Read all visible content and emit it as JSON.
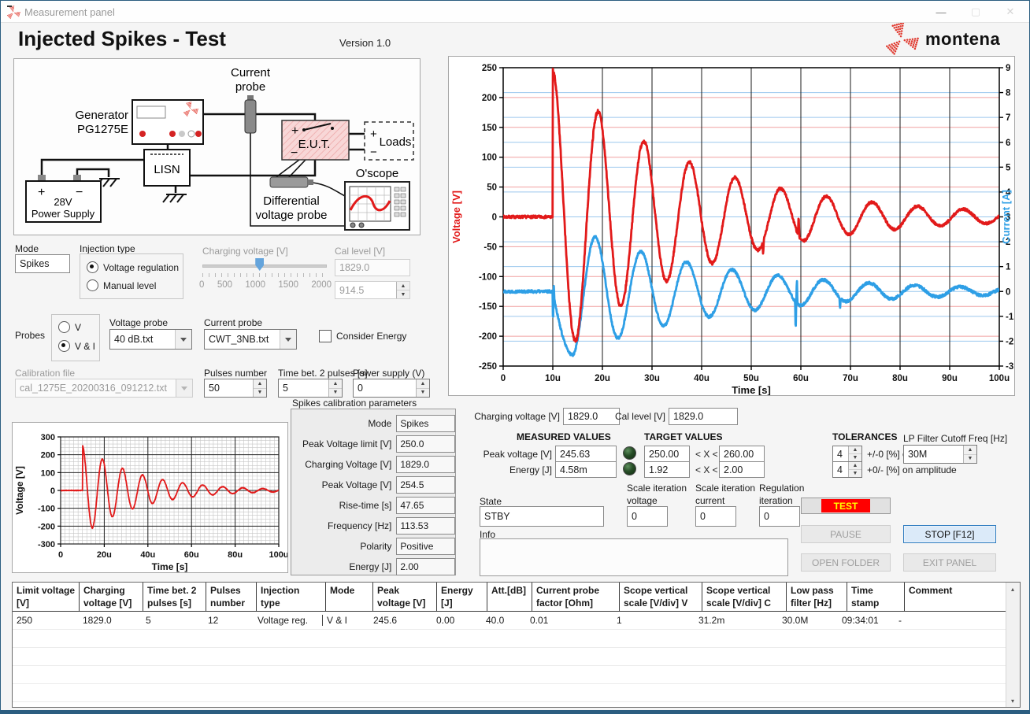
{
  "window": {
    "title": "Measurement panel",
    "minimize_glyph": "—",
    "maximize_glyph": "▢",
    "close_glyph": "✕"
  },
  "header": {
    "title": "Injected Spikes - Test",
    "version": "Version 1.0",
    "brand": "montena"
  },
  "diagram": {
    "generator_line1": "Generator",
    "generator_line2": "PG1275E",
    "current_probe_line1": "Current",
    "current_probe_line2": "probe",
    "eut": "E.U.T.",
    "loads": "Loads",
    "lisn": "LISN",
    "psu_line1": "28V",
    "psu_line2": "Power Supply",
    "diff_probe_line1": "Differential",
    "diff_probe_line2": "voltage probe",
    "oscope": "O'scope",
    "plus": "+",
    "minus": "−"
  },
  "controls": {
    "mode": {
      "label": "Mode",
      "value": "Spikes"
    },
    "injection": {
      "label": "Injection type",
      "options": [
        "Voltage regulation",
        "Manual level"
      ],
      "selected": 0
    },
    "charging_slider": {
      "label": "Charging voltage [V]",
      "min": 0,
      "max": 2000,
      "value": 914.5,
      "tick_labels": [
        "0",
        "500",
        "1000",
        "1500",
        "2000"
      ]
    },
    "cal_level": {
      "label": "Cal level [V]",
      "display": "1829.0",
      "spinner": "914.5"
    },
    "probes": {
      "label": "Probes",
      "options": [
        "V",
        "V & I"
      ],
      "selected": 1
    },
    "voltage_probe": {
      "label": "Voltage probe",
      "value": "40 dB.txt"
    },
    "current_probe": {
      "label": "Current probe",
      "value": "CWT_3NB.txt"
    },
    "consider_energy": {
      "label": "Consider Energy",
      "checked": false
    },
    "calibration_file": {
      "label": "Calibration file",
      "value": "cal_1275E_20200316_091212.txt"
    },
    "pulses_number": {
      "label": "Pulses number",
      "value": "50"
    },
    "time_bet_pulses": {
      "label": "Time bet. 2 pulses [s]",
      "value": "5"
    },
    "power_supply": {
      "label": "Power supply (V)",
      "value": "0"
    }
  },
  "calibration_params": {
    "title": "Spikes calibration parameters",
    "rows": [
      {
        "label": "Mode",
        "value": "Spikes"
      },
      {
        "label": "Peak Voltage limit [V]",
        "value": "250.0"
      },
      {
        "label": "Charging Voltage [V]",
        "value": "1829.0"
      },
      {
        "label": "Peak Voltage [V]",
        "value": "254.5"
      },
      {
        "label": "Rise-time [s]",
        "value": "47.65"
      },
      {
        "label": "Frequency [Hz]",
        "value": "113.53"
      },
      {
        "label": "Polarity",
        "value": "Positive"
      },
      {
        "label": "Energy [J]",
        "value": "2.00"
      }
    ]
  },
  "measurement": {
    "charging_voltage": {
      "label": "Charging voltage [V]",
      "value": "1829.0"
    },
    "cal_level": {
      "label": "Cal level [V]",
      "value": "1829.0"
    },
    "headers": {
      "measured": "MEASURED VALUES",
      "target": "TARGET VALUES",
      "tolerances": "TOLERANCES"
    },
    "rows": [
      {
        "label": "Peak voltage [V]",
        "measured": "245.63",
        "target_low": "250.00",
        "rel": "< X <",
        "target_high": "260.00",
        "tolerance": "4",
        "note": "+/-0 [%] on amplitude"
      },
      {
        "label": "Energy [J]",
        "measured": "4.58m",
        "target_low": "1.92",
        "rel": "< X <",
        "target_high": "2.00",
        "tolerance": "4",
        "note": "+0/- [%] on amplitude"
      }
    ],
    "lp_filter": {
      "label": "LP Filter Cutoff Freq [Hz]",
      "value": "30M"
    },
    "state": {
      "label": "State",
      "value": "STBY"
    },
    "scale_iter_voltage": {
      "label": "Scale iteration voltage",
      "value": "0"
    },
    "scale_iter_current": {
      "label": "Scale iteration current",
      "value": "0"
    },
    "regulation_iter": {
      "label": "Regulation iteration",
      "value": "0"
    },
    "info": {
      "label": "Info",
      "value": ""
    },
    "buttons": {
      "test": "TEST",
      "pause": "PAUSE",
      "stop": "STOP [F12]",
      "open_folder": "OPEN FOLDER",
      "exit": "EXIT PANEL"
    }
  },
  "table": {
    "columns": [
      "Limit voltage [V]",
      "Charging voltage [V]",
      "Time bet. 2 pulses [s]",
      "Pulses number",
      "Injection type",
      "Mode",
      "Peak voltage [V]",
      "Energy [J]",
      "Att.[dB]",
      "Current probe factor [Ohm]",
      "Scope vertical scale [V/div] V",
      "Scope vertical scale [V/div] C",
      "Low pass filter [Hz]",
      "Time stamp",
      "Comment"
    ],
    "rows": [
      [
        "250",
        "1829.0",
        "5",
        "12",
        "Voltage reg.",
        "V & I",
        "245.6",
        "0.00",
        "40.0",
        "0.01",
        "1",
        "31.2m",
        "30.0M",
        "09:34:01",
        "-"
      ]
    ]
  },
  "chart_data": [
    {
      "type": "line",
      "title": "",
      "xlabel": "Time [s]",
      "x_ticks": [
        "0",
        "10u",
        "20u",
        "30u",
        "40u",
        "50u",
        "60u",
        "70u",
        "80u",
        "90u",
        "100u"
      ],
      "x_range_us": [
        0,
        100
      ],
      "left_axis": {
        "label": "Voltage [V]",
        "color": "#e21a1a",
        "range": [
          -250,
          250
        ],
        "tick_step": 50,
        "gridline_color": "#f0a0a0"
      },
      "right_axis": {
        "label": "Current [A]",
        "color": "#2e9fe6",
        "range": [
          -3,
          9
        ],
        "tick_step": 1,
        "gridline_color": "#9cc8ee"
      },
      "series": [
        {
          "name": "voltage",
          "axis": "left",
          "color": "#e21a1a",
          "params": {
            "t0": 10,
            "amp": 245,
            "period": 9.2,
            "tau": 28,
            "floor": 4.5,
            "noise": 2.2,
            "glitches": [
              {
                "t": 59.55,
                "a": 28,
                "w": 0.1
              },
              {
                "t": 52.4,
                "a": -18,
                "w": 0.09
              }
            ]
          },
          "sampled_peaks_us_V": [
            [
              10,
              245
            ],
            [
              14.5,
              -225
            ],
            [
              19,
              199
            ],
            [
              23.5,
              -162
            ],
            [
              28,
              148
            ],
            [
              32,
              -128
            ],
            [
              36.5,
              108
            ],
            [
              40.5,
              -88
            ],
            [
              45,
              73
            ],
            [
              49.5,
              -60
            ],
            [
              54,
              50
            ],
            [
              58,
              -40
            ],
            [
              62,
              33
            ],
            [
              71,
              17
            ],
            [
              80,
              8
            ]
          ]
        },
        {
          "name": "current",
          "axis": "right",
          "color": "#2e9fe6",
          "params": {
            "t0": 10,
            "trough": -2.55,
            "period": 9.2,
            "tau": 30,
            "noise": 0.055,
            "glitches": [
              {
                "t": 10.05,
                "a": -1.35,
                "w": 0.05
              },
              {
                "t": 10.22,
                "a": 0.5,
                "w": 0.05
              },
              {
                "t": 58.95,
                "a": -1.15,
                "w": 0.07
              },
              {
                "t": 59.2,
                "a": 0.95,
                "w": 0.07
              },
              {
                "t": 67.9,
                "a": -0.4,
                "w": 0.08
              }
            ]
          },
          "sampled_peaks_us_A": [
            [
              14,
              -2.55
            ],
            [
              18.6,
              2.1
            ],
            [
              23,
              -1.9
            ],
            [
              27.6,
              1.45
            ],
            [
              32,
              -1.45
            ],
            [
              36.6,
              1.3
            ],
            [
              41,
              -0.95
            ],
            [
              45.6,
              0.9
            ],
            [
              50,
              -0.6
            ],
            [
              54.6,
              0.55
            ],
            [
              58.5,
              -0.45
            ],
            [
              63,
              0.36
            ],
            [
              67.5,
              -0.25
            ]
          ]
        }
      ]
    },
    {
      "type": "line",
      "title": "",
      "xlabel": "Time [s]",
      "ylabel": "Voltage [V]",
      "x_ticks": [
        "0",
        "20u",
        "40u",
        "60u",
        "80u",
        "100u"
      ],
      "x_range_us": [
        0,
        100
      ],
      "y_range": [
        -300,
        300
      ],
      "y_tick_step": 100,
      "series": [
        {
          "name": "voltage",
          "color": "#e21a1a",
          "params": {
            "t0": 10,
            "amp": 250,
            "period": 9.2,
            "tau": 26,
            "floor": 4,
            "noise": 1.6,
            "glitches": []
          }
        }
      ]
    }
  ]
}
